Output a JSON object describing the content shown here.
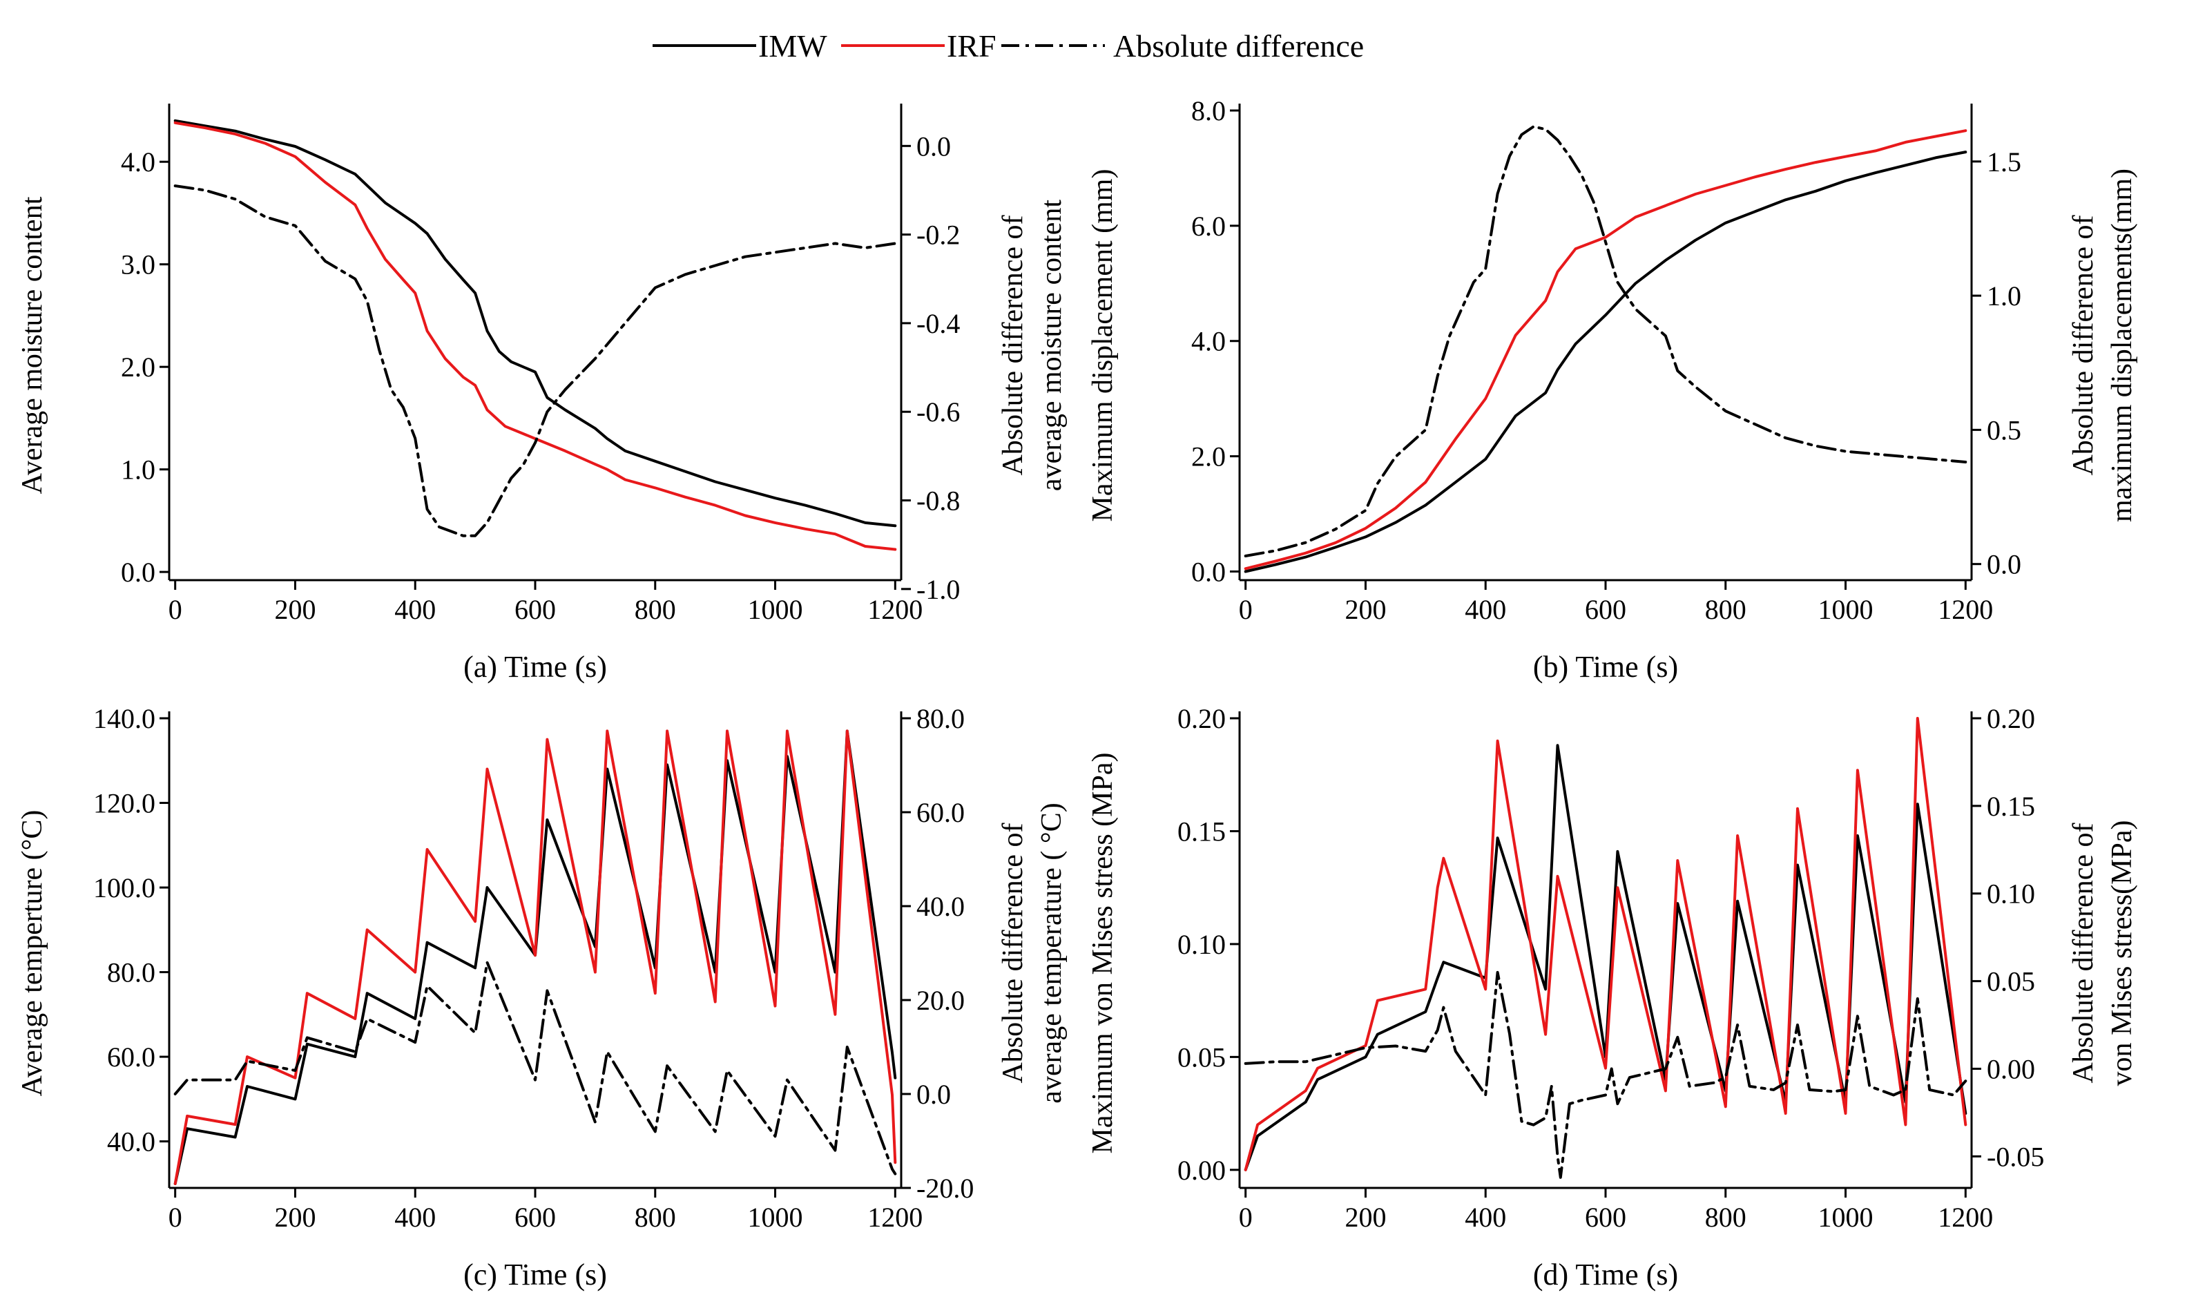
{
  "legend": {
    "items": [
      {
        "label": "IMW",
        "color": "#000000",
        "style": "solid"
      },
      {
        "label": "IRF",
        "color": "#e8191b",
        "style": "solid"
      },
      {
        "label": "Absolute difference",
        "color": "#000000",
        "style": "dashdot"
      }
    ]
  },
  "chart_data": [
    {
      "id": "a",
      "type": "line",
      "caption_prefix": "(a)",
      "xlabel": "Time (s)",
      "ylabel": "Average moisture content",
      "y2label": [
        "Absolute difference of",
        "average moisture content"
      ],
      "xlim": [
        -10,
        1210
      ],
      "ylim": [
        -0.08,
        4.5
      ],
      "y2lim": [
        -0.98,
        0.08
      ],
      "xticks": [
        0,
        200,
        400,
        600,
        800,
        1000,
        1200
      ],
      "xticklabels": [
        "0",
        "200",
        "400",
        "600",
        "800",
        "1000",
        "1200"
      ],
      "yticks": [
        0,
        1,
        2,
        3,
        4
      ],
      "yticklabels": [
        "0.0",
        "1.0",
        "2.0",
        "3.0",
        "4.0"
      ],
      "y2ticks": [
        0,
        -0.2,
        -0.4,
        -0.6,
        -0.8,
        -1.0
      ],
      "y2ticklabels": [
        "0.0",
        "-0.2",
        "-0.4",
        "-0.6",
        "-0.8",
        "-1.0"
      ],
      "series": [
        {
          "name": "IMW",
          "axis": "left",
          "x": [
            0,
            50,
            100,
            150,
            200,
            250,
            300,
            350,
            400,
            420,
            450,
            480,
            500,
            520,
            540,
            560,
            600,
            620,
            650,
            700,
            720,
            750,
            800,
            850,
            900,
            950,
            1000,
            1050,
            1100,
            1150,
            1200
          ],
          "y": [
            4.4,
            4.35,
            4.3,
            4.22,
            4.15,
            4.02,
            3.88,
            3.6,
            3.4,
            3.3,
            3.05,
            2.85,
            2.72,
            2.35,
            2.15,
            2.05,
            1.95,
            1.7,
            1.58,
            1.4,
            1.3,
            1.18,
            1.08,
            0.98,
            0.88,
            0.8,
            0.72,
            0.65,
            0.57,
            0.48,
            0.45
          ]
        },
        {
          "name": "IRF",
          "axis": "left",
          "x": [
            0,
            50,
            100,
            150,
            200,
            250,
            300,
            320,
            350,
            380,
            400,
            420,
            450,
            480,
            500,
            520,
            550,
            600,
            650,
            700,
            720,
            750,
            800,
            850,
            900,
            950,
            1000,
            1050,
            1100,
            1150,
            1200
          ],
          "y": [
            4.38,
            4.33,
            4.27,
            4.18,
            4.05,
            3.8,
            3.58,
            3.35,
            3.05,
            2.85,
            2.72,
            2.35,
            2.08,
            1.9,
            1.82,
            1.58,
            1.42,
            1.3,
            1.18,
            1.05,
            1.0,
            0.9,
            0.82,
            0.73,
            0.65,
            0.55,
            0.48,
            0.42,
            0.37,
            0.25,
            0.22
          ]
        },
        {
          "name": "Absolute difference",
          "axis": "right",
          "x": [
            0,
            50,
            100,
            150,
            200,
            250,
            300,
            320,
            340,
            360,
            380,
            400,
            420,
            440,
            460,
            480,
            500,
            520,
            540,
            560,
            580,
            600,
            620,
            650,
            700,
            750,
            800,
            850,
            900,
            950,
            1000,
            1050,
            1100,
            1150,
            1200
          ],
          "y": [
            -0.09,
            -0.1,
            -0.12,
            -0.16,
            -0.18,
            -0.26,
            -0.3,
            -0.35,
            -0.46,
            -0.55,
            -0.59,
            -0.66,
            -0.82,
            -0.86,
            -0.87,
            -0.88,
            -0.88,
            -0.85,
            -0.8,
            -0.75,
            -0.72,
            -0.67,
            -0.6,
            -0.55,
            -0.48,
            -0.4,
            -0.32,
            -0.29,
            -0.27,
            -0.25,
            -0.24,
            -0.23,
            -0.22,
            -0.23,
            -0.22
          ]
        }
      ]
    },
    {
      "id": "b",
      "type": "line",
      "caption_prefix": "(b)",
      "xlabel": "Time (s)",
      "ylabel": "Maximum displacement (mm)",
      "y2label": [
        "Absolute difference of",
        "maximum displacements(mm)"
      ],
      "xlim": [
        -10,
        1210
      ],
      "ylim": [
        -0.15,
        8.0
      ],
      "y2lim": [
        -0.06,
        1.69
      ],
      "xticks": [
        0,
        200,
        400,
        600,
        800,
        1000,
        1200
      ],
      "xticklabels": [
        "0",
        "200",
        "400",
        "600",
        "800",
        "1000",
        "1200"
      ],
      "yticks": [
        0,
        2,
        4,
        6,
        8
      ],
      "yticklabels": [
        "0.0",
        "2.0",
        "4.0",
        "6.0",
        "8.0"
      ],
      "y2ticks": [
        0,
        0.5,
        1.0,
        1.5
      ],
      "y2ticklabels": [
        "0.0",
        "0.5",
        "1.0",
        "1.5"
      ],
      "series": [
        {
          "name": "IMW",
          "axis": "left",
          "x": [
            0,
            50,
            100,
            150,
            200,
            250,
            300,
            350,
            400,
            450,
            500,
            520,
            550,
            600,
            650,
            700,
            750,
            800,
            850,
            900,
            950,
            1000,
            1050,
            1100,
            1150,
            1200
          ],
          "y": [
            0.0,
            0.12,
            0.25,
            0.42,
            0.6,
            0.85,
            1.15,
            1.55,
            1.95,
            2.7,
            3.1,
            3.5,
            3.95,
            4.45,
            5.0,
            5.4,
            5.75,
            6.05,
            6.25,
            6.45,
            6.6,
            6.78,
            6.92,
            7.05,
            7.18,
            7.28
          ]
        },
        {
          "name": "IRF",
          "axis": "left",
          "x": [
            0,
            50,
            100,
            150,
            200,
            250,
            300,
            350,
            400,
            450,
            500,
            520,
            550,
            600,
            650,
            700,
            750,
            800,
            850,
            900,
            950,
            1000,
            1050,
            1100,
            1150,
            1200
          ],
          "y": [
            0.05,
            0.18,
            0.32,
            0.5,
            0.75,
            1.1,
            1.55,
            2.3,
            3.0,
            4.1,
            4.7,
            5.2,
            5.6,
            5.8,
            6.15,
            6.35,
            6.55,
            6.7,
            6.85,
            6.98,
            7.1,
            7.2,
            7.3,
            7.45,
            7.55,
            7.65
          ]
        },
        {
          "name": "Absolute difference",
          "axis": "right",
          "x": [
            0,
            50,
            100,
            150,
            200,
            220,
            250,
            300,
            320,
            340,
            360,
            380,
            400,
            420,
            440,
            460,
            480,
            500,
            520,
            540,
            560,
            580,
            600,
            620,
            650,
            700,
            720,
            750,
            800,
            850,
            900,
            950,
            1000,
            1050,
            1100,
            1150,
            1200
          ],
          "y": [
            0.03,
            0.05,
            0.08,
            0.13,
            0.2,
            0.3,
            0.4,
            0.5,
            0.7,
            0.85,
            0.95,
            1.05,
            1.1,
            1.38,
            1.52,
            1.6,
            1.63,
            1.62,
            1.58,
            1.52,
            1.45,
            1.35,
            1.2,
            1.05,
            0.95,
            0.85,
            0.72,
            0.66,
            0.57,
            0.52,
            0.47,
            0.44,
            0.42,
            0.41,
            0.4,
            0.39,
            0.38
          ]
        }
      ]
    },
    {
      "id": "c",
      "type": "line",
      "caption_prefix": "(c)",
      "xlabel": "Time (s)",
      "ylabel": "Average temperture  (°C)",
      "y2label": [
        "Absolute difference of",
        "average temperature (  °C)"
      ],
      "xlim": [
        -10,
        1210
      ],
      "ylim": [
        29,
        140
      ],
      "y2lim": [
        -20,
        80
      ],
      "xticks": [
        0,
        200,
        400,
        600,
        800,
        1000,
        1200
      ],
      "xticklabels": [
        "0",
        "200",
        "400",
        "600",
        "800",
        "1000",
        "1200"
      ],
      "yticks": [
        40,
        60,
        80,
        100,
        120,
        140
      ],
      "yticklabels": [
        "40.0",
        "60.0",
        "80.0",
        "100.0",
        "120.0",
        "140.0"
      ],
      "y2ticks": [
        -20,
        0,
        20,
        40,
        60,
        80
      ],
      "y2ticklabels": [
        "-20.0",
        "0.0",
        "20.0",
        "40.0",
        "60.0",
        "80.0"
      ],
      "series": [
        {
          "name": "IMW",
          "axis": "left",
          "x": [
            0,
            20,
            100,
            120,
            200,
            220,
            300,
            320,
            400,
            420,
            500,
            520,
            600,
            620,
            700,
            720,
            800,
            820,
            900,
            920,
            1000,
            1020,
            1100,
            1120,
            1195,
            1200
          ],
          "y": [
            30,
            43,
            41,
            53,
            50,
            63,
            60,
            75,
            69,
            87,
            81,
            100,
            84,
            116,
            86,
            128,
            81,
            129,
            80,
            130,
            80,
            131,
            80,
            137,
            61,
            55
          ]
        },
        {
          "name": "IRF",
          "axis": "left",
          "x": [
            0,
            20,
            100,
            120,
            200,
            220,
            300,
            320,
            400,
            420,
            500,
            520,
            600,
            620,
            700,
            720,
            800,
            820,
            900,
            920,
            1000,
            1020,
            1100,
            1120,
            1195,
            1200
          ],
          "y": [
            30,
            46,
            44,
            60,
            55,
            75,
            69,
            90,
            80,
            109,
            92,
            128,
            84,
            135,
            80,
            137,
            75,
            137,
            73,
            137,
            72,
            137,
            70,
            137,
            51,
            35
          ]
        },
        {
          "name": "Absolute difference",
          "axis": "right",
          "x": [
            0,
            20,
            100,
            120,
            200,
            220,
            300,
            320,
            400,
            420,
            500,
            520,
            600,
            620,
            700,
            720,
            800,
            820,
            900,
            920,
            1000,
            1020,
            1100,
            1120,
            1195,
            1200
          ],
          "y": [
            0,
            3,
            3,
            7,
            5,
            12,
            9,
            16,
            11,
            23,
            13,
            28,
            3,
            22,
            -6,
            9,
            -8,
            6,
            -8,
            5,
            -9,
            3,
            -12,
            10,
            -16,
            -17
          ]
        }
      ]
    },
    {
      "id": "d",
      "type": "line",
      "caption_prefix": "(d)",
      "xlabel": "Time (s)",
      "ylabel": "Maximum von Mises stress (MPa)",
      "y2label": [
        "Absolute difference of",
        "von Mises stress(MPa)"
      ],
      "xlim": [
        -10,
        1210
      ],
      "ylim": [
        -0.008,
        0.2
      ],
      "y2lim": [
        -0.068,
        0.2
      ],
      "xticks": [
        0,
        200,
        400,
        600,
        800,
        1000,
        1200
      ],
      "xticklabels": [
        "0",
        "200",
        "400",
        "600",
        "800",
        "1000",
        "1200"
      ],
      "yticks": [
        0,
        0.05,
        0.1,
        0.15,
        0.2
      ],
      "yticklabels": [
        "0.00",
        "0.05",
        "0.10",
        "0.15",
        "0.20"
      ],
      "y2ticks": [
        -0.05,
        0,
        0.05,
        0.1,
        0.15,
        0.2
      ],
      "y2ticklabels": [
        "-0.05",
        "0.00",
        "0.05",
        "0.10",
        "0.15",
        "0.20"
      ],
      "series": [
        {
          "name": "IMW",
          "axis": "left",
          "x": [
            0,
            20,
            100,
            120,
            200,
            220,
            300,
            320,
            330,
            400,
            420,
            500,
            520,
            600,
            620,
            700,
            720,
            800,
            820,
            900,
            920,
            1000,
            1020,
            1100,
            1120,
            1200
          ],
          "y": [
            0.0,
            0.015,
            0.03,
            0.04,
            0.05,
            0.06,
            0.07,
            0.085,
            0.092,
            0.085,
            0.147,
            0.08,
            0.188,
            0.05,
            0.141,
            0.04,
            0.118,
            0.035,
            0.119,
            0.03,
            0.135,
            0.03,
            0.148,
            0.03,
            0.162,
            0.025
          ]
        },
        {
          "name": "IRF",
          "axis": "left",
          "x": [
            0,
            20,
            100,
            120,
            200,
            220,
            300,
            320,
            330,
            400,
            420,
            500,
            520,
            600,
            620,
            700,
            720,
            800,
            820,
            900,
            920,
            1000,
            1020,
            1100,
            1120,
            1200
          ],
          "y": [
            0.0,
            0.02,
            0.035,
            0.045,
            0.055,
            0.075,
            0.08,
            0.125,
            0.138,
            0.08,
            0.19,
            0.06,
            0.13,
            0.045,
            0.125,
            0.035,
            0.137,
            0.028,
            0.148,
            0.025,
            0.16,
            0.025,
            0.177,
            0.02,
            0.2,
            0.02
          ]
        },
        {
          "name": "Absolute difference",
          "axis": "right",
          "x": [
            0,
            50,
            100,
            150,
            200,
            250,
            300,
            320,
            330,
            350,
            400,
            420,
            440,
            460,
            480,
            500,
            510,
            520,
            525,
            540,
            560,
            600,
            610,
            620,
            640,
            700,
            720,
            740,
            780,
            800,
            820,
            840,
            880,
            900,
            920,
            940,
            980,
            1000,
            1020,
            1040,
            1080,
            1100,
            1120,
            1140,
            1180,
            1200
          ],
          "y": [
            0.003,
            0.004,
            0.004,
            0.008,
            0.012,
            0.013,
            0.01,
            0.022,
            0.035,
            0.01,
            -0.015,
            0.055,
            0.02,
            -0.03,
            -0.032,
            -0.028,
            -0.01,
            -0.05,
            -0.062,
            -0.02,
            -0.018,
            -0.015,
            0.0,
            -0.02,
            -0.005,
            0.0,
            0.018,
            -0.01,
            -0.008,
            -0.005,
            0.025,
            -0.01,
            -0.012,
            -0.008,
            0.025,
            -0.012,
            -0.013,
            -0.012,
            0.03,
            -0.01,
            -0.015,
            -0.012,
            0.04,
            -0.012,
            -0.015,
            -0.007
          ]
        }
      ]
    }
  ]
}
